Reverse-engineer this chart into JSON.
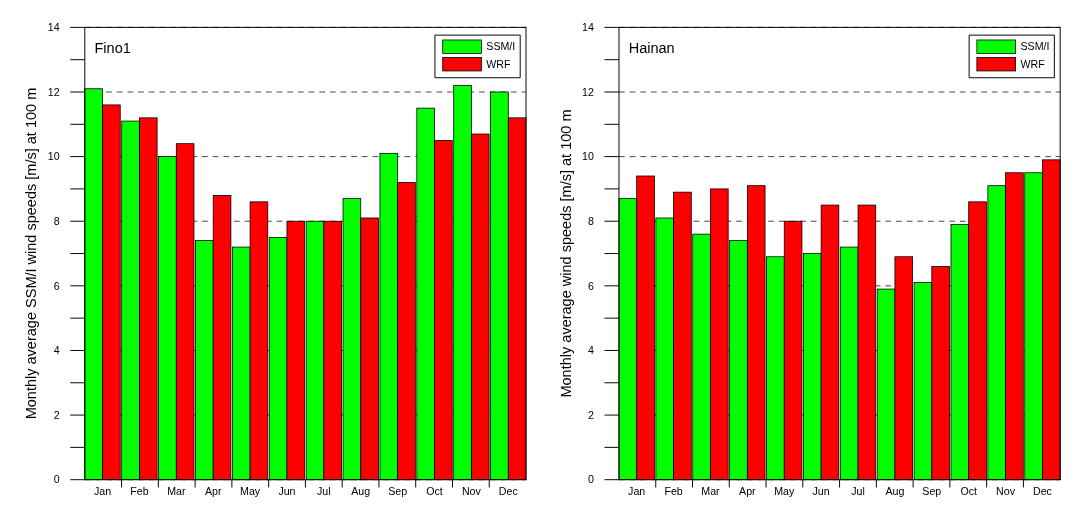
{
  "chart_data": [
    {
      "type": "bar",
      "title": "Fino1",
      "ylabel": "Monthly average SSM/I wind speeds [m/s] at 100 m",
      "categories": [
        "Jan",
        "Feb",
        "Mar",
        "Apr",
        "May",
        "Jun",
        "Jul",
        "Aug",
        "Sep",
        "Oct",
        "Nov",
        "Dec"
      ],
      "series": [
        {
          "name": "SSM/I",
          "color": "#00ff00",
          "values": [
            12.1,
            11.1,
            10.0,
            7.4,
            7.2,
            7.5,
            8.0,
            8.7,
            10.1,
            11.5,
            12.2,
            12.0
          ]
        },
        {
          "name": "WRF",
          "color": "#ff0000",
          "values": [
            11.6,
            11.2,
            10.4,
            8.8,
            8.6,
            8.0,
            8.0,
            8.1,
            9.2,
            10.5,
            10.7,
            11.2
          ]
        }
      ],
      "ylim": [
        0,
        14
      ],
      "yticks": [
        0,
        {
          "value": 1,
          "label": null
        },
        2,
        {
          "value": 3,
          "label": null
        },
        4,
        {
          "value": 5,
          "label": null
        },
        6,
        {
          "value": 7,
          "label": null
        },
        8,
        {
          "value": 9,
          "label": null
        },
        10,
        {
          "value": 11,
          "label": null
        },
        12,
        {
          "value": 13,
          "label": null
        },
        14
      ],
      "grid": "y",
      "legend": "top right"
    },
    {
      "type": "bar",
      "title": "Hainan",
      "ylabel": "Monthly average wind speeds [m/s] at 100 m",
      "categories": [
        "Jan",
        "Feb",
        "Mar",
        "Apr",
        "May",
        "Jun",
        "Jul",
        "Aug",
        "Sep",
        "Oct",
        "Nov",
        "Dec"
      ],
      "series": [
        {
          "name": "SSM/I",
          "color": "#00ff00",
          "values": [
            8.7,
            8.1,
            7.6,
            7.4,
            6.9,
            7.0,
            7.2,
            5.9,
            6.1,
            7.9,
            9.1,
            9.5
          ]
        },
        {
          "name": "WRF",
          "color": "#ff0000",
          "values": [
            9.4,
            8.9,
            9.0,
            9.1,
            8.0,
            8.5,
            8.5,
            6.9,
            6.6,
            8.6,
            9.5,
            9.9
          ]
        }
      ],
      "ylim": [
        0,
        14
      ],
      "yticks": [
        0,
        {
          "value": 1,
          "label": null
        },
        2,
        {
          "value": 3,
          "label": null
        },
        4,
        {
          "value": 5,
          "label": null
        },
        6,
        {
          "value": 7,
          "label": null
        },
        8,
        {
          "value": 9,
          "label": null
        },
        10,
        {
          "value": 11,
          "label": null
        },
        12,
        {
          "value": 13,
          "label": null
        },
        14
      ],
      "grid": "y",
      "legend": "top right"
    }
  ]
}
